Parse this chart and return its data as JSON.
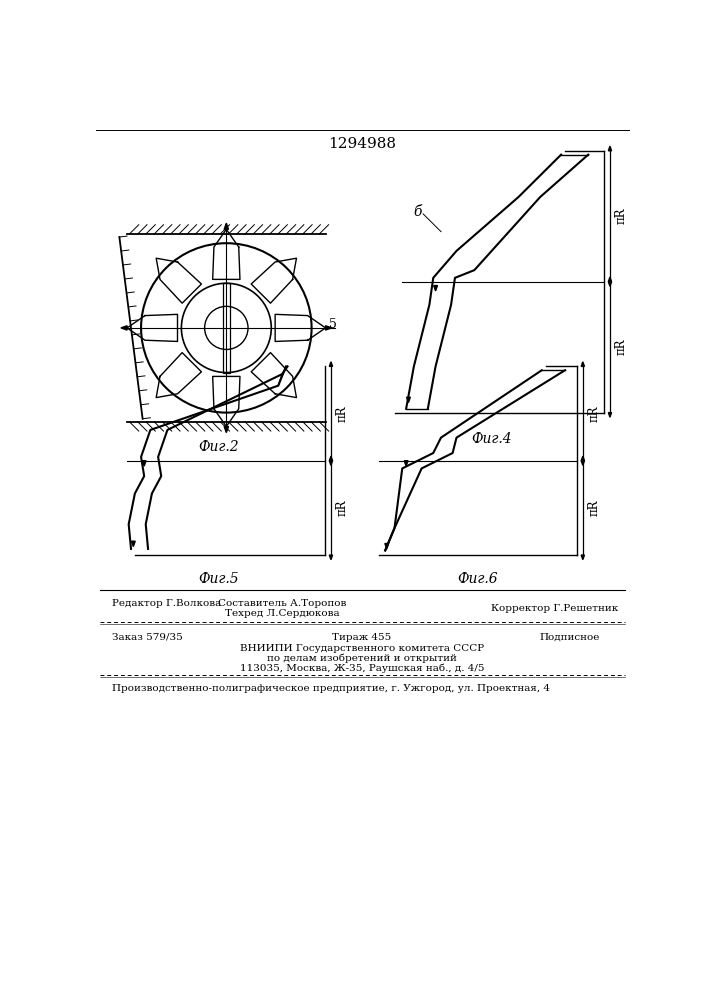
{
  "patent_number": "1294988",
  "fig2_label": "Фиг.2",
  "fig4_label": "Фиг.4",
  "fig5_label": "Фиг.5",
  "fig6_label": "Фиг.6",
  "label_5": "5",
  "label_6": "б",
  "pi_r_label": "πR",
  "editor_line": "Редактор Г.Волкова",
  "composer_line": "Составитель А.Торопов",
  "techred_line": "Техред Л.Сердюкова",
  "corrector_line": "Корректор Г.Решетник",
  "order_line": "Заказ 579/35",
  "tirazh_line": "Тираж 455",
  "podpisnoe_line": "Подписное",
  "vniiipi_line": "ВНИИПИ Государственного комитета СССР",
  "po_delam_line": "по делам изобретений и открытий",
  "address_line": "113035, Москва, Ж-35, Раушская наб., д. 4/5",
  "factory_line": "Производственно-полиграфическое предприятие, г. Ужгород, ул. Проектная, 4",
  "bg_color": "#ffffff",
  "line_color": "#000000"
}
